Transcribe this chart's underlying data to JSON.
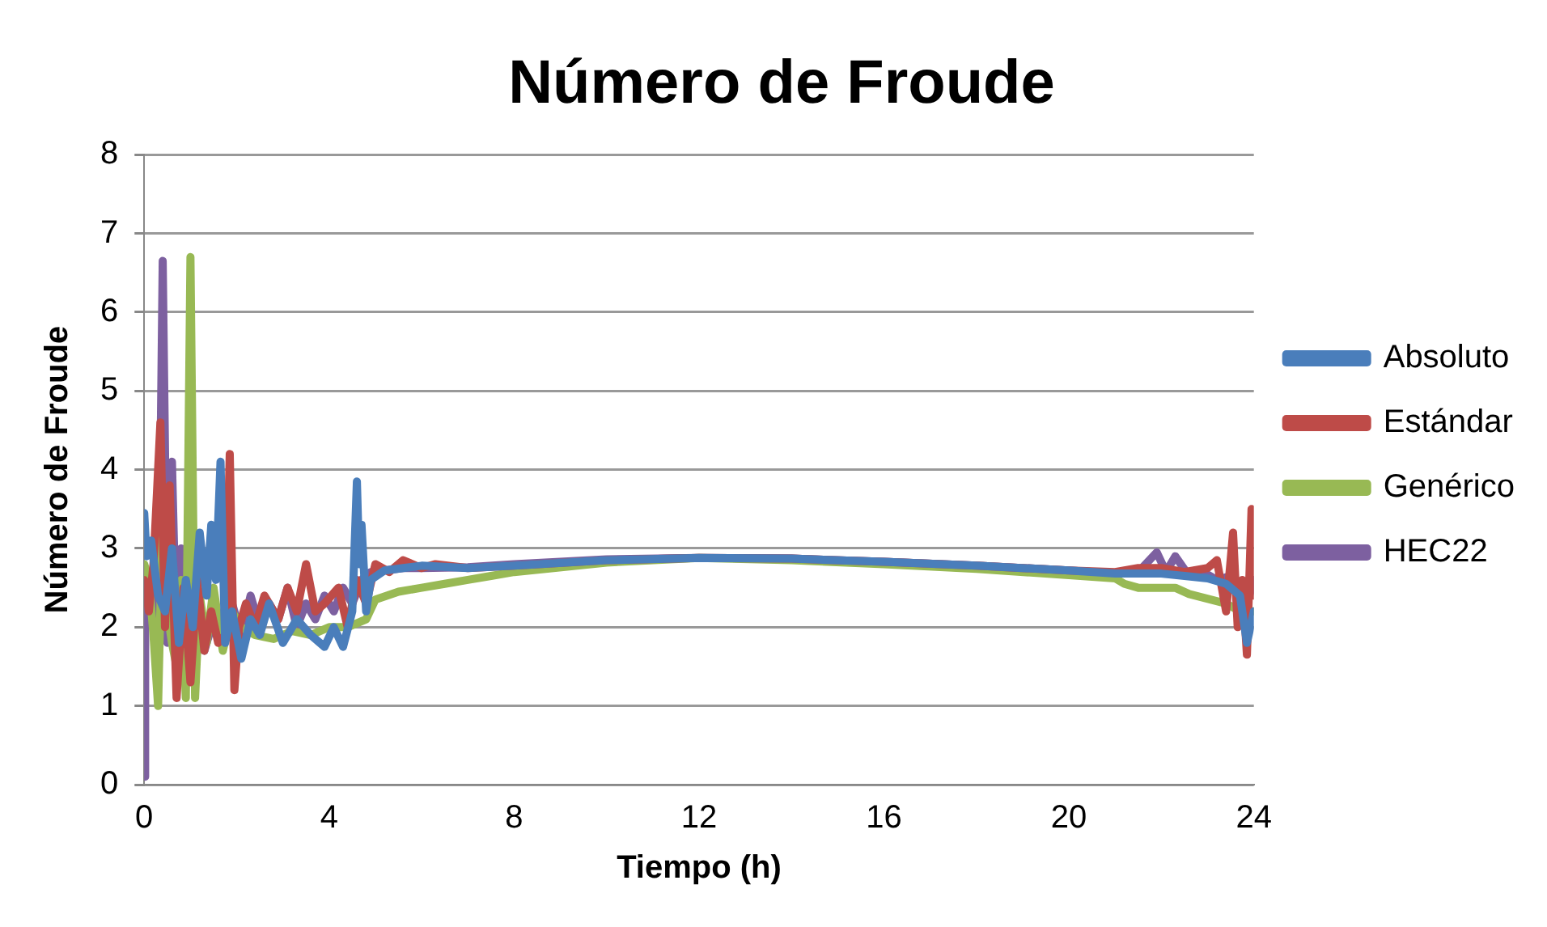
{
  "chart_data": {
    "type": "line",
    "title": "Número de Froude",
    "xlabel": "Tiempo (h)",
    "ylabel": "Número de Froude",
    "xlim": [
      0,
      24
    ],
    "xticks": [
      0,
      4,
      8,
      12,
      16,
      20,
      24
    ],
    "ylim": [
      0,
      8
    ],
    "yticks": [
      0,
      1,
      2,
      3,
      4,
      5,
      6,
      7,
      8
    ],
    "grid": "y",
    "legend": "right",
    "marker": "none",
    "line_style": "solid",
    "series": [
      {
        "name": "Absoluto",
        "color": "#4a7ebb",
        "x": [
          0,
          0.05,
          0.15,
          0.3,
          0.45,
          0.6,
          0.75,
          0.9,
          1.05,
          1.2,
          1.35,
          1.45,
          1.55,
          1.65,
          1.75,
          1.9,
          2.1,
          2.3,
          2.5,
          2.7,
          3.0,
          3.3,
          3.6,
          3.9,
          4.1,
          4.3,
          4.5,
          4.6,
          4.65,
          4.7,
          4.8,
          4.9,
          5.2,
          5.6,
          6.0,
          7,
          8,
          10,
          12,
          14,
          16,
          18,
          20,
          21,
          22,
          22.5,
          23,
          23.4,
          23.7,
          23.85,
          24
        ],
        "values": [
          3.45,
          2.9,
          3.1,
          2.4,
          2.2,
          3.0,
          1.8,
          2.6,
          2.0,
          3.2,
          2.4,
          3.3,
          2.6,
          4.1,
          1.8,
          2.2,
          1.6,
          2.1,
          1.9,
          2.3,
          1.8,
          2.1,
          1.9,
          1.75,
          2.0,
          1.75,
          2.2,
          3.85,
          2.8,
          3.3,
          2.2,
          2.6,
          2.72,
          2.75,
          2.78,
          2.75,
          2.78,
          2.85,
          2.88,
          2.87,
          2.83,
          2.78,
          2.72,
          2.68,
          2.68,
          2.65,
          2.62,
          2.55,
          2.4,
          1.8,
          2.2
        ]
      },
      {
        "name": "Estándar",
        "color": "#be4b48",
        "x": [
          0,
          0.1,
          0.2,
          0.35,
          0.45,
          0.55,
          0.7,
          0.85,
          1.0,
          1.15,
          1.3,
          1.45,
          1.6,
          1.75,
          1.85,
          1.95,
          2.05,
          2.2,
          2.4,
          2.6,
          2.9,
          3.1,
          3.3,
          3.5,
          3.7,
          3.9,
          4.2,
          4.4,
          4.6,
          4.8,
          5.0,
          5.3,
          5.6,
          6.0,
          6.3,
          7,
          8,
          10,
          12,
          14,
          16,
          18,
          20,
          21,
          21.5,
          22,
          22.5,
          23,
          23.2,
          23.4,
          23.55,
          23.65,
          23.75,
          23.85,
          23.95,
          24
        ],
        "values": [
          2.6,
          2.2,
          2.8,
          4.6,
          2.0,
          3.8,
          1.1,
          2.5,
          1.3,
          2.6,
          1.7,
          2.2,
          1.8,
          1.9,
          4.2,
          1.2,
          2.0,
          2.3,
          2.0,
          2.4,
          2.1,
          2.5,
          2.2,
          2.8,
          2.2,
          2.3,
          2.5,
          2.0,
          2.6,
          2.3,
          2.8,
          2.7,
          2.85,
          2.75,
          2.8,
          2.75,
          2.78,
          2.85,
          2.88,
          2.87,
          2.83,
          2.78,
          2.72,
          2.7,
          2.75,
          2.75,
          2.7,
          2.75,
          2.85,
          2.2,
          3.2,
          2.0,
          2.6,
          1.65,
          3.5,
          2.4
        ]
      },
      {
        "name": "Genérico",
        "color": "#98b954",
        "x": [
          0,
          0.1,
          0.2,
          0.3,
          0.4,
          0.5,
          0.6,
          0.7,
          0.8,
          0.9,
          1.0,
          1.1,
          1.2,
          1.35,
          1.5,
          1.7,
          1.9,
          2.1,
          2.4,
          2.8,
          3.2,
          3.6,
          4.0,
          4.4,
          4.8,
          5.0,
          5.5,
          6,
          6.5,
          7,
          7.5,
          8,
          10,
          12,
          14,
          16,
          18,
          20,
          21,
          21.2,
          21.5,
          22.3,
          22.6,
          23.4,
          23.7,
          24
        ],
        "values": [
          2.8,
          2.6,
          1.9,
          1.0,
          3.5,
          2.2,
          1.8,
          1.5,
          2.6,
          1.1,
          6.7,
          1.1,
          2.4,
          1.8,
          2.5,
          1.7,
          2.2,
          2.0,
          1.9,
          1.85,
          1.95,
          1.9,
          2.0,
          2.0,
          2.1,
          2.35,
          2.45,
          2.5,
          2.55,
          2.6,
          2.65,
          2.7,
          2.82,
          2.88,
          2.85,
          2.8,
          2.74,
          2.66,
          2.62,
          2.55,
          2.5,
          2.5,
          2.42,
          2.3,
          2.2,
          2.2
        ]
      },
      {
        "name": "HEC22",
        "color": "#7d60a0",
        "x": [
          0,
          0.02,
          0.1,
          0.2,
          0.3,
          0.4,
          0.5,
          0.6,
          0.7,
          0.8,
          0.9,
          1.0,
          1.1,
          1.2,
          1.3,
          1.5,
          1.7,
          1.9,
          2.1,
          2.3,
          2.5,
          2.7,
          2.9,
          3.1,
          3.3,
          3.5,
          3.7,
          3.9,
          4.1,
          4.3,
          4.5,
          4.7,
          4.9,
          5.2,
          5.6,
          6,
          7,
          8,
          10,
          12,
          14,
          16,
          18,
          20,
          21,
          21.5,
          21.9,
          22.1,
          22.3,
          22.6,
          22.9,
          23.2,
          23.5,
          23.8,
          24
        ],
        "values": [
          0.1,
          2.6,
          2.2,
          2.7,
          1.4,
          6.65,
          1.8,
          4.1,
          1.7,
          3.0,
          1.6,
          2.6,
          1.8,
          2.3,
          1.7,
          2.1,
          1.8,
          2.3,
          1.9,
          2.4,
          2.0,
          2.3,
          2.1,
          2.5,
          2.0,
          2.3,
          2.1,
          2.4,
          2.2,
          2.5,
          2.3,
          2.6,
          2.7,
          2.72,
          2.75,
          2.75,
          2.76,
          2.8,
          2.86,
          2.88,
          2.87,
          2.83,
          2.78,
          2.72,
          2.68,
          2.7,
          2.95,
          2.7,
          2.9,
          2.65,
          2.7,
          2.6,
          2.65,
          2.2,
          2.6
        ]
      }
    ]
  }
}
